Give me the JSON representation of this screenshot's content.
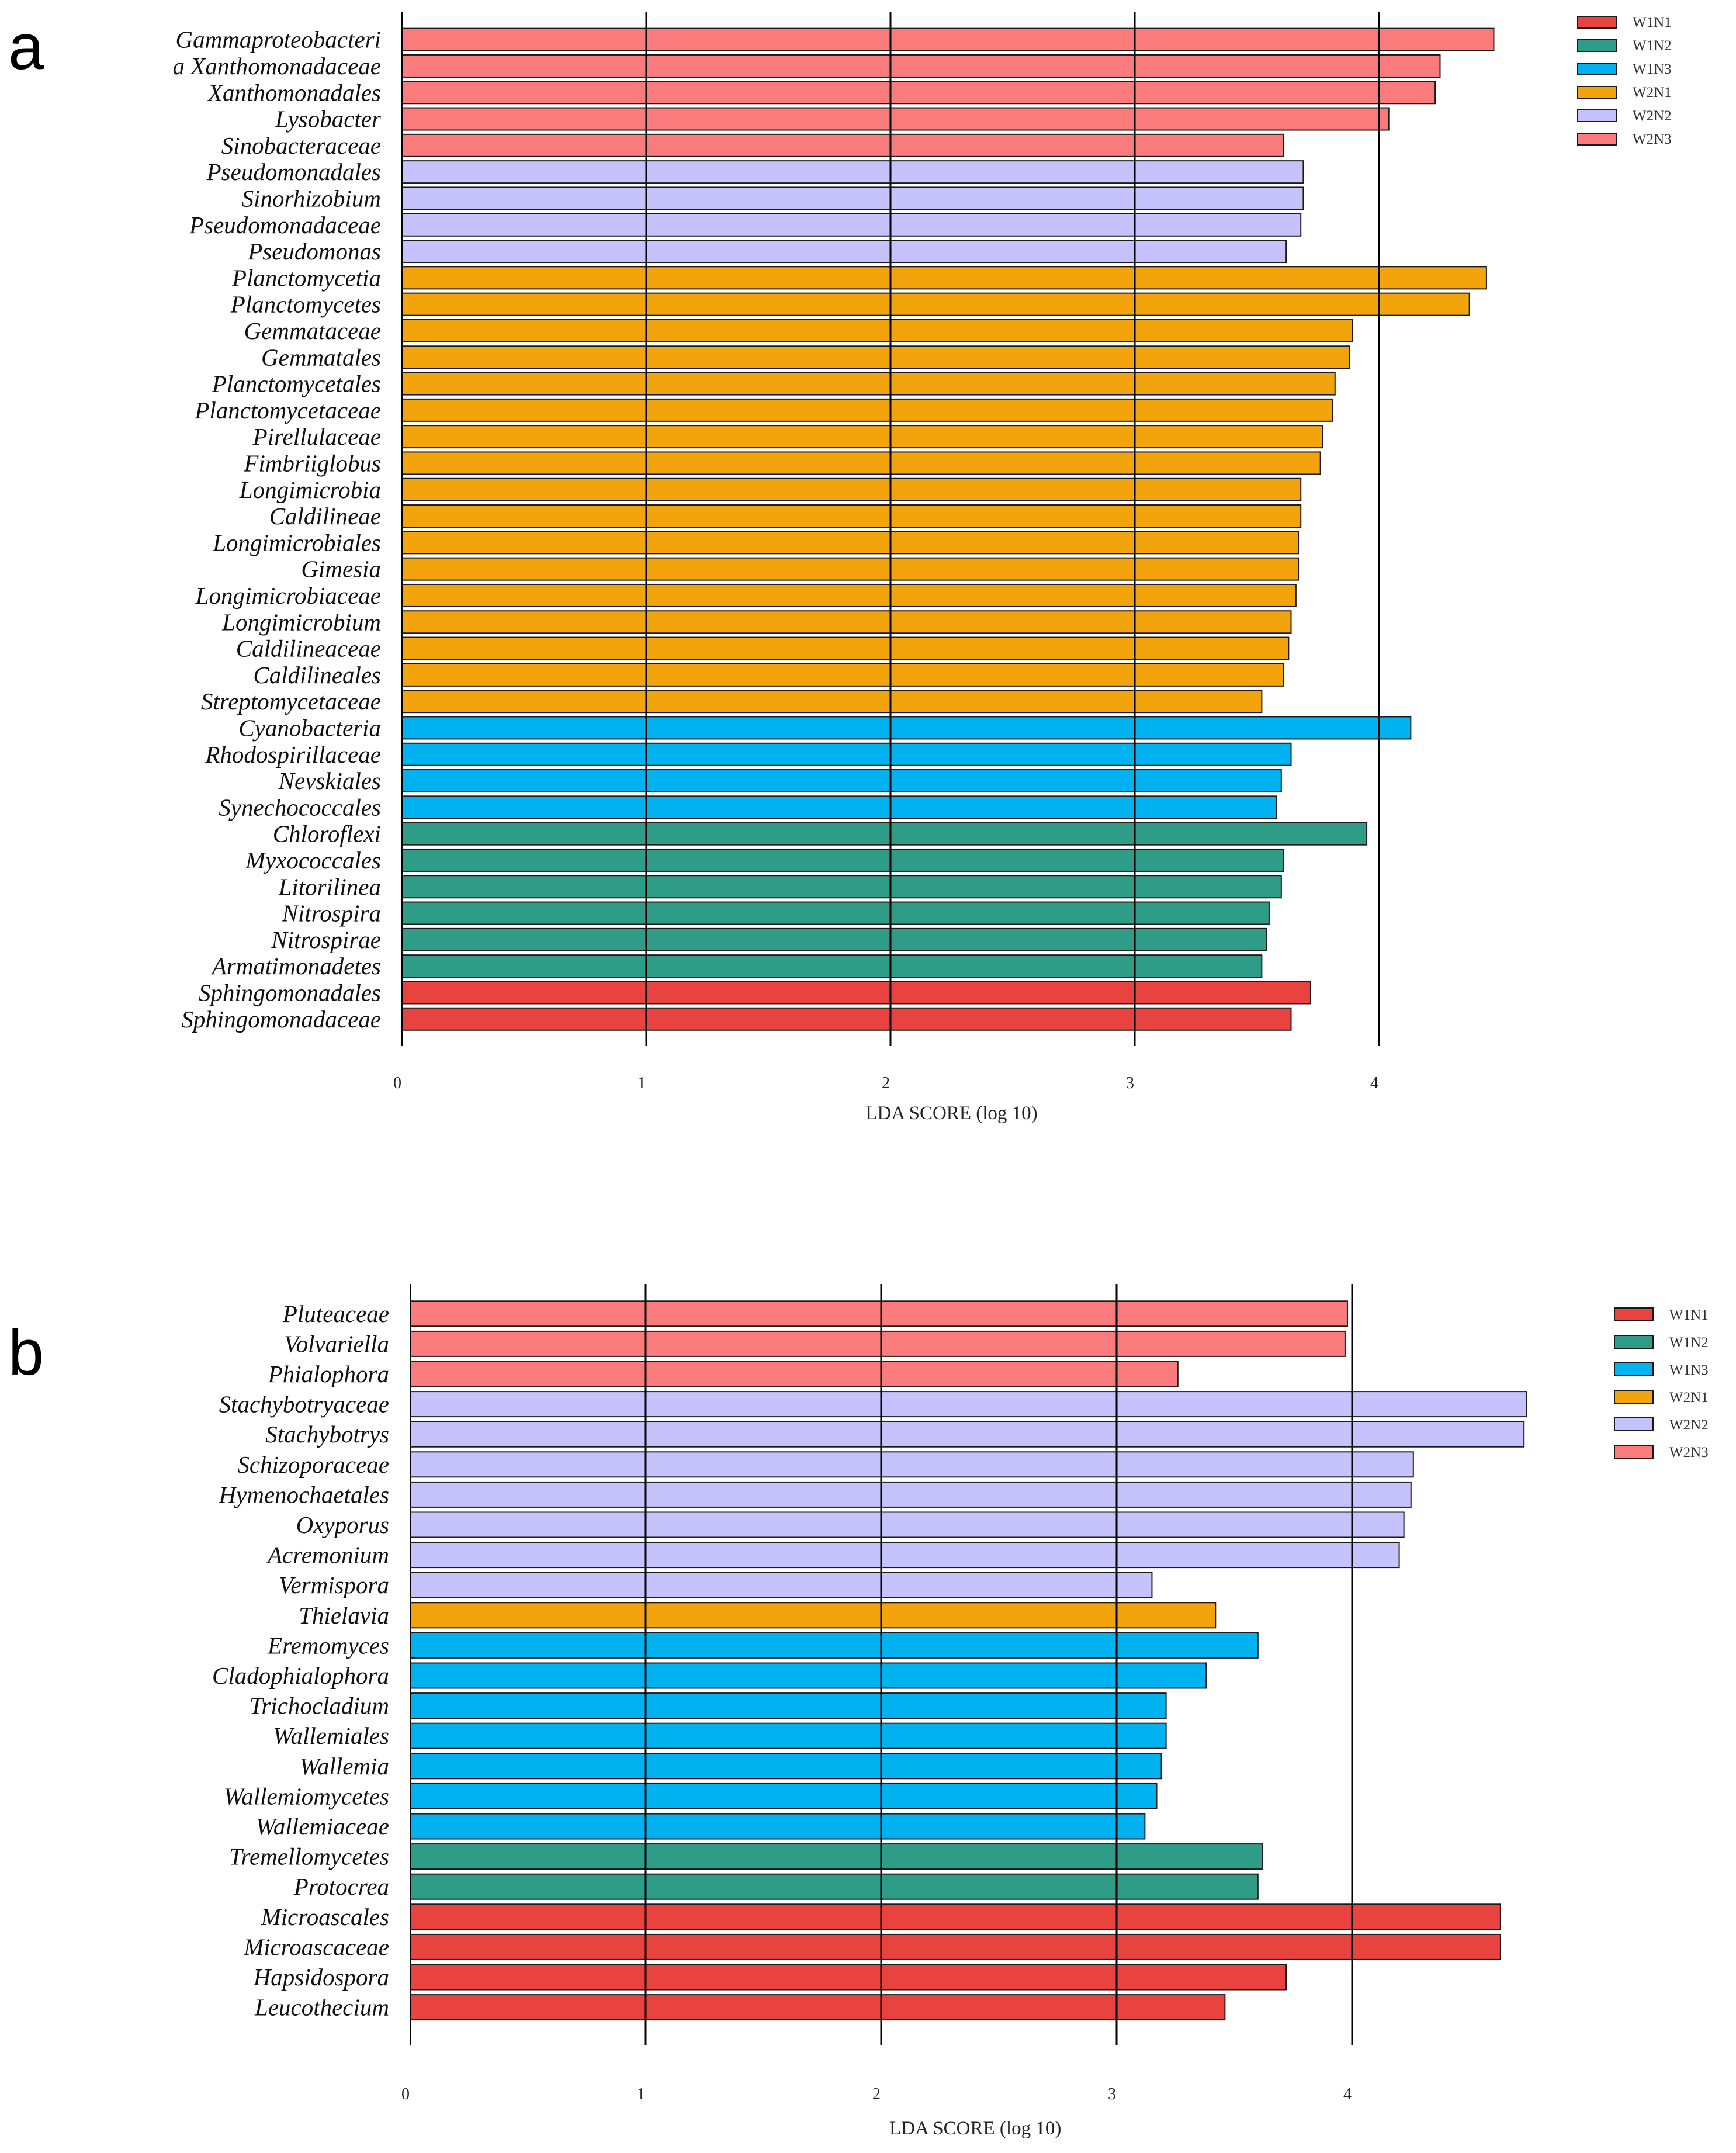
{
  "colors": {
    "W1N1": "#e8433f",
    "W1N2": "#2e9c86",
    "W1N3": "#00b2f0",
    "W2N1": "#f3a30b",
    "W2N2": "#c6c2fb",
    "W2N3": "#fa7b7b"
  },
  "chart_data": [
    {
      "type": "bar",
      "orientation": "horizontal",
      "panel": "a",
      "xlabel": "LDA SCORE (log 10)",
      "xlim": [
        0,
        4.5
      ],
      "xticks": [
        0,
        1,
        2,
        3,
        4
      ],
      "grid": "vertical lines at 1, 2, 3, 4",
      "legend": [
        "W1N1",
        "W1N2",
        "W1N3",
        "W2N1",
        "W2N2",
        "W2N3"
      ],
      "legend_position": "top-right",
      "bars": [
        {
          "label": "Gammaproteobacteri",
          "value": 4.47,
          "group": "W2N3"
        },
        {
          "label": "a Xanthomonadaceae",
          "value": 4.25,
          "group": "W2N3"
        },
        {
          "label": "Xanthomonadales",
          "value": 4.23,
          "group": "W2N3"
        },
        {
          "label": "Lysobacter",
          "value": 4.04,
          "group": "W2N3"
        },
        {
          "label": "Sinobacteraceae",
          "value": 3.61,
          "group": "W2N3"
        },
        {
          "label": "Pseudomonadales",
          "value": 3.69,
          "group": "W2N2"
        },
        {
          "label": "Sinorhizobium",
          "value": 3.69,
          "group": "W2N2"
        },
        {
          "label": "Pseudomonadaceae",
          "value": 3.68,
          "group": "W2N2"
        },
        {
          "label": "Pseudomonas",
          "value": 3.62,
          "group": "W2N2"
        },
        {
          "label": "Planctomycetia",
          "value": 4.44,
          "group": "W2N1"
        },
        {
          "label": "Planctomycetes",
          "value": 4.37,
          "group": "W2N1"
        },
        {
          "label": "Gemmataceae",
          "value": 3.89,
          "group": "W2N1"
        },
        {
          "label": "Gemmatales",
          "value": 3.88,
          "group": "W2N1"
        },
        {
          "label": "Planctomycetales",
          "value": 3.82,
          "group": "W2N1"
        },
        {
          "label": "Planctomycetaceae",
          "value": 3.81,
          "group": "W2N1"
        },
        {
          "label": "Pirellulaceae",
          "value": 3.77,
          "group": "W2N1"
        },
        {
          "label": "Fimbriiglobus",
          "value": 3.76,
          "group": "W2N1"
        },
        {
          "label": "Longimicrobia",
          "value": 3.68,
          "group": "W2N1"
        },
        {
          "label": "Caldilineae",
          "value": 3.68,
          "group": "W2N1"
        },
        {
          "label": "Longimicrobiales",
          "value": 3.67,
          "group": "W2N1"
        },
        {
          "label": "Gimesia",
          "value": 3.67,
          "group": "W2N1"
        },
        {
          "label": "Longimicrobiaceae",
          "value": 3.66,
          "group": "W2N1"
        },
        {
          "label": "Longimicrobium",
          "value": 3.64,
          "group": "W2N1"
        },
        {
          "label": "Caldilineaceae",
          "value": 3.63,
          "group": "W2N1"
        },
        {
          "label": "Caldilineales",
          "value": 3.61,
          "group": "W2N1"
        },
        {
          "label": "Streptomycetaceae",
          "value": 3.52,
          "group": "W2N1"
        },
        {
          "label": "Cyanobacteria",
          "value": 4.13,
          "group": "W1N3"
        },
        {
          "label": "Rhodospirillaceae",
          "value": 3.64,
          "group": "W1N3"
        },
        {
          "label": "Nevskiales",
          "value": 3.6,
          "group": "W1N3"
        },
        {
          "label": "Synechococcales",
          "value": 3.58,
          "group": "W1N3"
        },
        {
          "label": "Chloroflexi",
          "value": 3.95,
          "group": "W1N2"
        },
        {
          "label": "Myxococcales",
          "value": 3.61,
          "group": "W1N2"
        },
        {
          "label": "Litorilinea",
          "value": 3.6,
          "group": "W1N2"
        },
        {
          "label": "Nitrospira",
          "value": 3.55,
          "group": "W1N2"
        },
        {
          "label": "Nitrospirae",
          "value": 3.54,
          "group": "W1N2"
        },
        {
          "label": "Armatimonadetes",
          "value": 3.52,
          "group": "W1N2"
        },
        {
          "label": "Sphingomonadales",
          "value": 3.72,
          "group": "W1N1"
        },
        {
          "label": "Sphingomonadaceae",
          "value": 3.64,
          "group": "W1N1"
        }
      ]
    },
    {
      "type": "bar",
      "orientation": "horizontal",
      "panel": "b",
      "xlabel": "LDA SCORE (log 10)",
      "xlim": [
        0,
        4.8
      ],
      "xticks": [
        0,
        1,
        2,
        3,
        4
      ],
      "grid": "vertical lines at 1, 2, 3, 4",
      "legend": [
        "W1N1",
        "W1N2",
        "W1N3",
        "W2N1",
        "W2N2",
        "W2N3"
      ],
      "legend_position": "top-right",
      "bars": [
        {
          "label": "Pluteaceae",
          "value": 3.98,
          "group": "W2N3"
        },
        {
          "label": "Volvariella",
          "value": 3.97,
          "group": "W2N3"
        },
        {
          "label": "Phialophora",
          "value": 3.26,
          "group": "W2N3"
        },
        {
          "label": "Stachybotryaceae",
          "value": 4.74,
          "group": "W2N2"
        },
        {
          "label": "Stachybotrys",
          "value": 4.73,
          "group": "W2N2"
        },
        {
          "label": "Schizoporaceae",
          "value": 4.26,
          "group": "W2N2"
        },
        {
          "label": "Hymenochaetales",
          "value": 4.25,
          "group": "W2N2"
        },
        {
          "label": "Oxyporus",
          "value": 4.22,
          "group": "W2N2"
        },
        {
          "label": "Acremonium",
          "value": 4.2,
          "group": "W2N2"
        },
        {
          "label": "Vermispora",
          "value": 3.15,
          "group": "W2N2"
        },
        {
          "label": "Thielavia",
          "value": 3.42,
          "group": "W2N1"
        },
        {
          "label": "Eremomyces",
          "value": 3.6,
          "group": "W1N3"
        },
        {
          "label": "Cladophialophora",
          "value": 3.38,
          "group": "W1N3"
        },
        {
          "label": "Trichocladium",
          "value": 3.21,
          "group": "W1N3"
        },
        {
          "label": "Wallemiales",
          "value": 3.21,
          "group": "W1N3"
        },
        {
          "label": "Wallemia",
          "value": 3.19,
          "group": "W1N3"
        },
        {
          "label": "Wallemiomycetes",
          "value": 3.17,
          "group": "W1N3"
        },
        {
          "label": "Wallemiaceae",
          "value": 3.12,
          "group": "W1N3"
        },
        {
          "label": "Tremellomycetes",
          "value": 3.62,
          "group": "W1N2"
        },
        {
          "label": "Protocrea",
          "value": 3.6,
          "group": "W1N2"
        },
        {
          "label": "Microascales",
          "value": 4.63,
          "group": "W1N1"
        },
        {
          "label": "Microascaceae",
          "value": 4.63,
          "group": "W1N1"
        },
        {
          "label": "Hapsidospora",
          "value": 3.72,
          "group": "W1N1"
        },
        {
          "label": "Leucothecium",
          "value": 3.46,
          "group": "W1N1"
        }
      ]
    }
  ]
}
